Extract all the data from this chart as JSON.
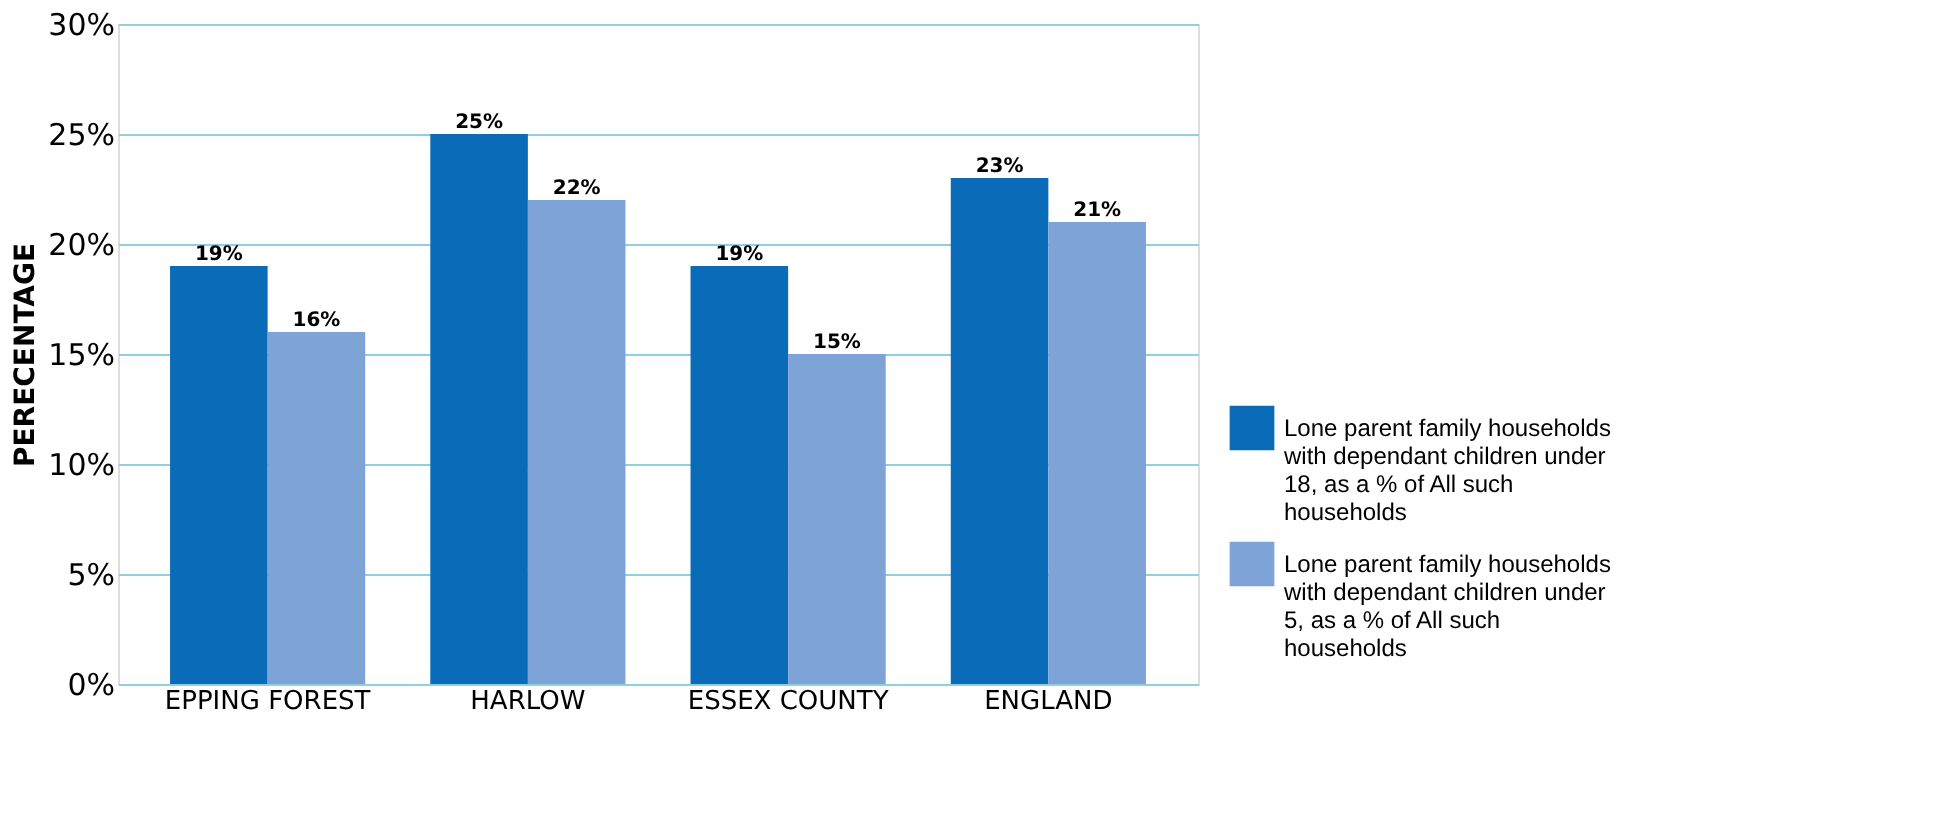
{
  "chart_data": {
    "type": "bar",
    "ylabel": "PERECENTAGE",
    "categories": [
      "EPPING FOREST",
      "HARLOW",
      "ESSEX  COUNTY",
      "ENGLAND"
    ],
    "series": [
      {
        "name": "Lone parent family households with dependant children under 18, as a % of All such households",
        "color": "#0a6cb8",
        "values": [
          19,
          25,
          19,
          23
        ],
        "value_labels": [
          "19%",
          "25%",
          "19%",
          "23%"
        ]
      },
      {
        "name": "Lone parent family households with dependant children under 5, as a % of All such households",
        "color": "#7ea3d6",
        "values": [
          16,
          22,
          15,
          21
        ],
        "value_labels": [
          "16%",
          "22%",
          "15%",
          "21%"
        ]
      }
    ],
    "ylim": [
      0,
      30
    ],
    "yticks": [
      {
        "value": 0,
        "label": "0%"
      },
      {
        "value": 5,
        "label": "5%"
      },
      {
        "value": 10,
        "label": "10%"
      },
      {
        "value": 15,
        "label": "15%"
      },
      {
        "value": 20,
        "label": "20%"
      },
      {
        "value": 25,
        "label": "25%"
      },
      {
        "value": 30,
        "label": "30%"
      }
    ],
    "grid": "y",
    "legend": "bottom right"
  }
}
